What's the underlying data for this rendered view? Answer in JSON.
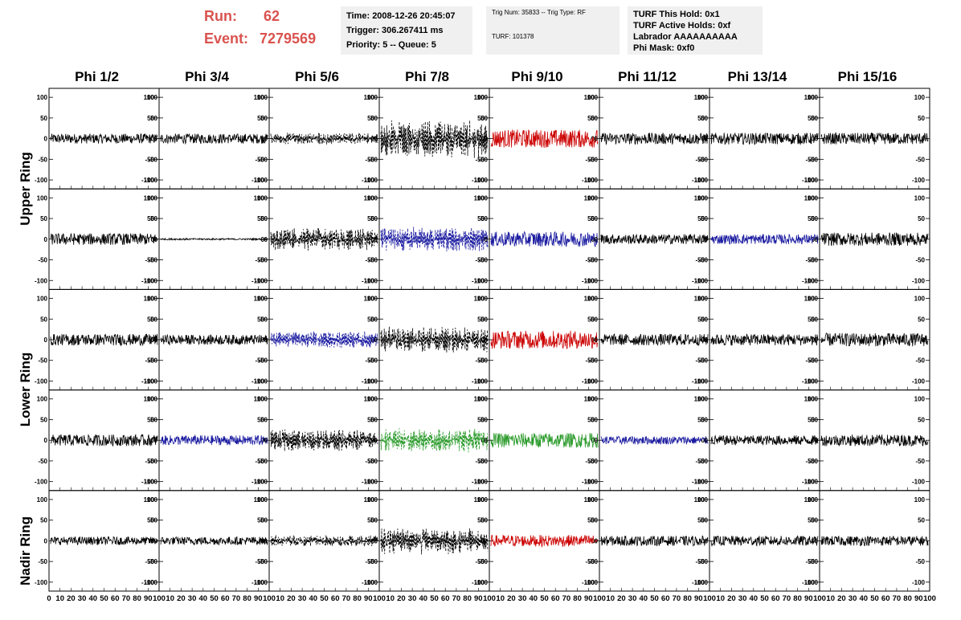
{
  "header": {
    "run_label": "Run:",
    "run_value": "62",
    "event_label": "Event:",
    "event_value": "7279569"
  },
  "info_boxes": {
    "time": [
      "Time: 2008-12-26 20:45:07",
      "Trigger: 306.267411 ms",
      "Priority: 5 -- Queue: 5"
    ],
    "trig": [
      "Trig Num: 35833 -- Trig Type: RF",
      "TURF: 101378"
    ],
    "turf": [
      "TURF This Hold: 0x1",
      "TURF Active Holds: 0xf",
      "Labrador AAAAAAAAAA",
      "Phi Mask: 0xf0"
    ]
  },
  "columns": [
    "Phi 1/2",
    "Phi 3/4",
    "Phi 5/6",
    "Phi 7/8",
    "Phi 9/10",
    "Phi 11/12",
    "Phi 13/14",
    "Phi 15/16"
  ],
  "rows": [
    "Upper Ring",
    "Lower Ring",
    "Nadir Ring"
  ],
  "axes": {
    "y_ticks": [
      "100",
      "50",
      "0",
      "-50",
      "-100"
    ],
    "x_ticks_first": [
      "0",
      "10",
      "20",
      "30",
      "40",
      "50",
      "60",
      "70",
      "80",
      "90",
      "100"
    ],
    "x_ticks_other": [
      "10",
      "20",
      "30",
      "40",
      "50",
      "60",
      "70",
      "80",
      "90",
      "100"
    ]
  },
  "colors": {
    "accent_red": "#d9534f",
    "trace_black": "#000000",
    "trace_red": "#cc0000",
    "trace_blue": "#1a1aa0",
    "trace_green": "#2a9a2a",
    "box_bg": "#f0f0f0"
  },
  "panels": [
    [
      "black",
      "black",
      "black-dashed",
      "black-dashed",
      "red",
      "black",
      "black",
      "black"
    ],
    [
      "black",
      "black-flat",
      "black-dashed",
      "blue-dashed",
      "blue",
      "black",
      "blue",
      "black"
    ],
    [
      "black",
      "black",
      "blue-dashed",
      "black-dashed",
      "red",
      "black",
      "black",
      "black"
    ],
    [
      "black",
      "blue",
      "black-dashed",
      "green-dashed",
      "green",
      "blue",
      "black",
      "black"
    ],
    [
      "black",
      "black",
      "black-dashed",
      "black-dashed",
      "red",
      "black",
      "black",
      "black"
    ]
  ],
  "amplitudes": [
    [
      12,
      12,
      14,
      45,
      22,
      14,
      14,
      14
    ],
    [
      14,
      2,
      28,
      30,
      18,
      12,
      12,
      16
    ],
    [
      14,
      12,
      20,
      32,
      22,
      14,
      14,
      16
    ],
    [
      14,
      12,
      26,
      28,
      18,
      10,
      12,
      14
    ],
    [
      10,
      10,
      14,
      32,
      14,
      12,
      12,
      12
    ]
  ]
}
